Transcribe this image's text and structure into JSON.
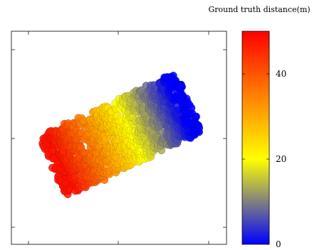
{
  "chart_data": {
    "type": "scatter",
    "title": "",
    "xlabel": "",
    "ylabel": "",
    "grid": false,
    "axis_tick_labels_shown": false,
    "colorbar": {
      "label": "Ground truth distance",
      "unit": "(m)",
      "range": [
        0,
        50
      ],
      "ticks": [
        0,
        20,
        40
      ],
      "tick_labels": [
        "0",
        "20",
        "40"
      ],
      "colormap": [
        "#0000ff",
        "#808080",
        "#ffff00",
        "#ff8000",
        "#ff0000"
      ]
    },
    "points": {
      "shape": "cylinder-cloud",
      "value_low_end": 48,
      "value_high_end": 0,
      "description_of_color": "distance increases from right end (blue) to left end (red)"
    }
  }
}
